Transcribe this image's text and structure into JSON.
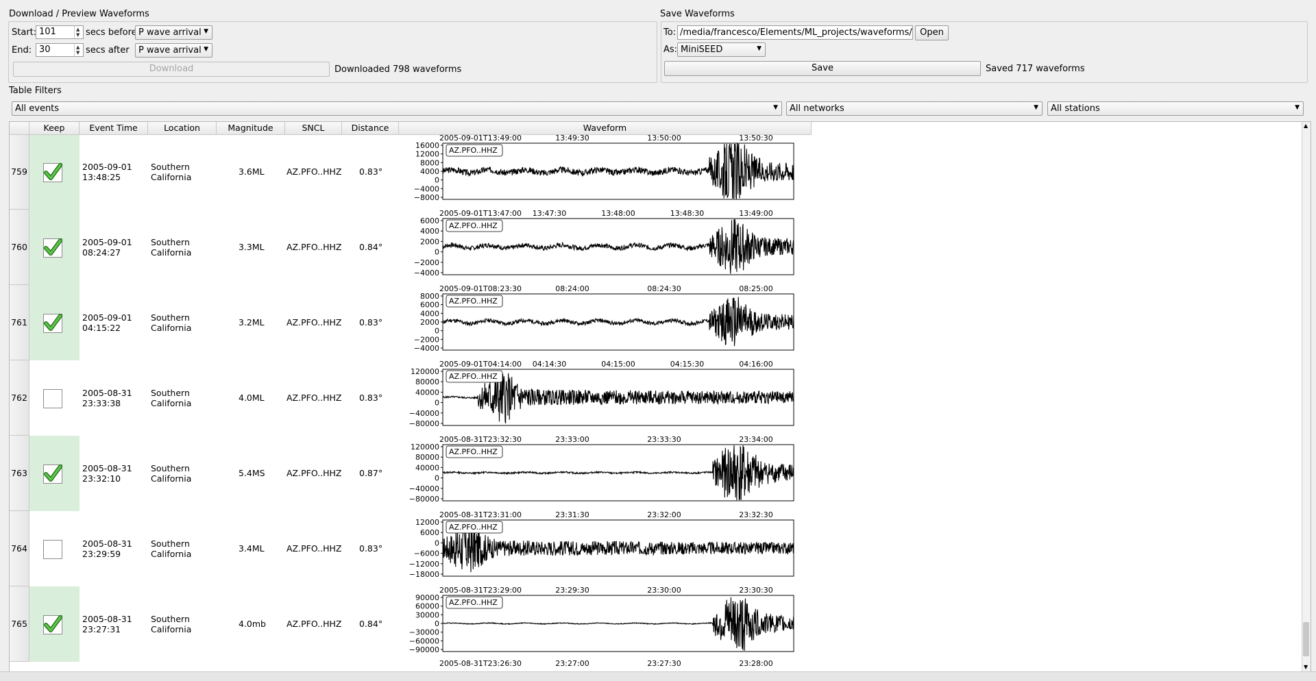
{
  "download_panel": {
    "title": "Download / Preview Waveforms",
    "start_label": "Start:",
    "start_value": "101",
    "secs_before_label": "secs before",
    "start_ref": "P wave arrival",
    "end_label": "End:",
    "end_value": "30",
    "secs_after_label": "secs after",
    "end_ref": "P wave arrival",
    "download_button": "Download",
    "status": "Downloaded 798 waveforms"
  },
  "save_panel": {
    "title": "Save Waveforms",
    "to_label": "To:",
    "to_path": "/media/francesco/Elements/ML_projects/waveforms/PFO",
    "open_button": "Open",
    "as_label": "As:",
    "format": "MiniSEED",
    "save_button": "Save",
    "status": "Saved 717 waveforms"
  },
  "filters": {
    "title": "Table Filters",
    "events": "All events",
    "networks": "All networks",
    "stations": "All stations"
  },
  "table": {
    "headers": [
      "Keep",
      "Event Time",
      "Location",
      "Magnitude",
      "SNCL",
      "Distance",
      "Waveform"
    ],
    "rows": [
      {
        "num": "759",
        "kept": true,
        "date": "2005-09-01",
        "time": "13:48:25",
        "loc1": "Southern",
        "loc2": "California",
        "mag": "3.6ML",
        "sncl": "AZ.PFO..HHZ",
        "dist": "0.83°",
        "wf": {
          "label": "AZ.PFO..HHZ",
          "top_ticks": [
            "2005-09-01T13:49:00",
            "13:49:30",
            "13:50:00",
            "13:50:30"
          ],
          "yticks": [
            "16000",
            "12000",
            "8000",
            "4000",
            "0",
            "−4000",
            "−8000"
          ],
          "onset": 0.76,
          "pre_amp": 0.08,
          "post_amp": 0.45,
          "seed": 3
        }
      },
      {
        "num": "760",
        "kept": true,
        "date": "2005-09-01",
        "time": "08:24:27",
        "loc1": "Southern",
        "loc2": "California",
        "mag": "3.3ML",
        "sncl": "AZ.PFO..HHZ",
        "dist": "0.84°",
        "wf": {
          "label": "AZ.PFO..HHZ",
          "top_ticks": [
            "2005-09-01T13:47:00",
            "13:47:30",
            "13:48:00",
            "13:48:30",
            "13:49:00"
          ],
          "yticks": [
            "6000",
            "4000",
            "2000",
            "0",
            "−2000",
            "−4000"
          ],
          "onset": 0.76,
          "pre_amp": 0.06,
          "post_amp": 0.38,
          "seed": 7
        }
      },
      {
        "num": "761",
        "kept": true,
        "date": "2005-09-01",
        "time": "04:15:22",
        "loc1": "Southern",
        "loc2": "California",
        "mag": "3.2ML",
        "sncl": "AZ.PFO..HHZ",
        "dist": "0.83°",
        "wf": {
          "label": "AZ.PFO..HHZ",
          "top_ticks": [
            "2005-09-01T08:23:30",
            "08:24:00",
            "08:24:30",
            "08:25:00"
          ],
          "yticks": [
            "8000",
            "6000",
            "4000",
            "2000",
            "0",
            "−2000",
            "−4000"
          ],
          "onset": 0.76,
          "pre_amp": 0.05,
          "post_amp": 0.35,
          "seed": 11
        }
      },
      {
        "num": "762",
        "kept": false,
        "date": "2005-08-31",
        "time": "23:33:38",
        "loc1": "Southern",
        "loc2": "California",
        "mag": "4.0ML",
        "sncl": "AZ.PFO..HHZ",
        "dist": "0.83°",
        "wf": {
          "label": "AZ.PFO..HHZ",
          "top_ticks": [
            "2005-09-01T04:14:00",
            "04:14:30",
            "04:15:00",
            "04:15:30",
            "04:16:00"
          ],
          "yticks": [
            "120000",
            "80000",
            "40000",
            "0",
            "−40000",
            "−80000"
          ],
          "onset": 0.1,
          "pre_amp": 0.02,
          "post_amp": 0.35,
          "seed": 5
        }
      },
      {
        "num": "763",
        "kept": true,
        "date": "2005-08-31",
        "time": "23:32:10",
        "loc1": "Southern",
        "loc2": "California",
        "mag": "5.4MS",
        "sncl": "AZ.PFO..HHZ",
        "dist": "0.87°",
        "wf": {
          "label": "AZ.PFO..HHZ",
          "top_ticks": [
            "2005-08-31T23:32:30",
            "23:33:00",
            "23:33:30",
            "23:34:00"
          ],
          "yticks": [
            "120000",
            "80000",
            "40000",
            "0",
            "−40000",
            "−80000"
          ],
          "onset": 0.77,
          "pre_amp": 0.02,
          "post_amp": 0.45,
          "seed": 13
        }
      },
      {
        "num": "764",
        "kept": false,
        "date": "2005-08-31",
        "time": "23:29:59",
        "loc1": "Southern",
        "loc2": "California",
        "mag": "3.4ML",
        "sncl": "AZ.PFO..HHZ",
        "dist": "0.83°",
        "wf": {
          "label": "AZ.PFO..HHZ",
          "top_ticks": [
            "2005-08-31T23:31:00",
            "23:31:30",
            "23:32:00",
            "23:32:30"
          ],
          "yticks": [
            "12000",
            "6000",
            "0",
            "−6000",
            "−12000",
            "−18000"
          ],
          "onset": 0.0,
          "pre_amp": 0.0,
          "post_amp": 0.35,
          "seed": 17
        }
      },
      {
        "num": "765",
        "kept": true,
        "date": "2005-08-31",
        "time": "23:27:31",
        "loc1": "Southern",
        "loc2": "California",
        "mag": "4.0mb",
        "sncl": "AZ.PFO..HHZ",
        "dist": "0.84°",
        "wf": {
          "label": "AZ.PFO..HHZ",
          "top_ticks": [
            "2005-08-31T23:29:00",
            "23:29:30",
            "23:30:00",
            "23:30:30"
          ],
          "yticks": [
            "90000",
            "60000",
            "30000",
            "0",
            "−30000",
            "−60000",
            "−90000"
          ],
          "onset": 0.77,
          "pre_amp": 0.01,
          "post_amp": 0.4,
          "seed": 19
        }
      }
    ],
    "last_bottom_ticks": [
      "2005-08-31T23:26:30",
      "23:27:00",
      "23:27:30",
      "23:28:00"
    ]
  }
}
